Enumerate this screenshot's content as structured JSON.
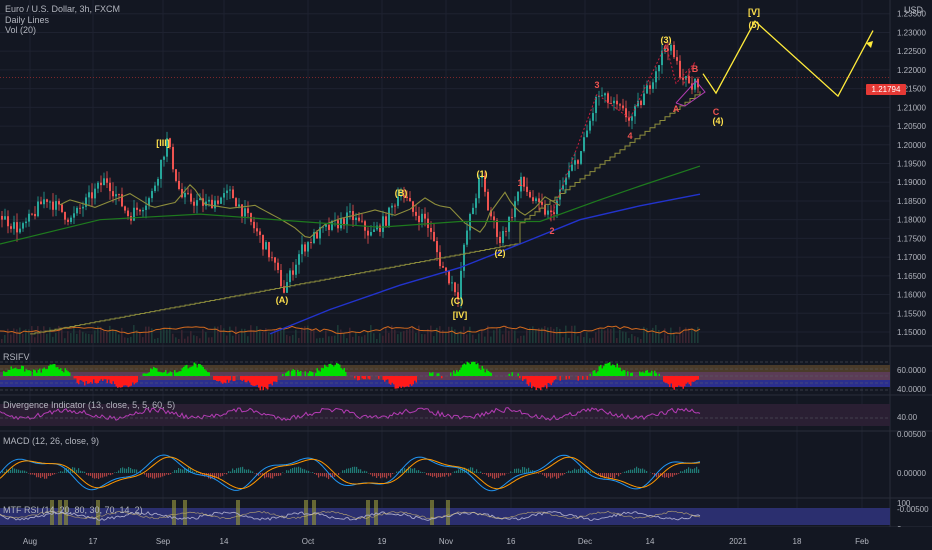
{
  "header": {
    "symbol_line": "Euro / U.S. Dollar, 3h, FXCM",
    "study_1": "Daily Lines",
    "study_2": "Vol (20)",
    "currency": "USD"
  },
  "last_price": "1.21794",
  "panes": {
    "rsi": "RSIFV",
    "divergence": "Divergence Indicator (13, close, 5, 5, 60, 5)",
    "macd": "MACD (12, 26, close, 9)",
    "mtf": "MTF RSI (14, 20, 80, 30, 70, 14, 2)"
  },
  "price_ticks": [
    "1.23500",
    "1.23000",
    "1.22500",
    "1.22000",
    "1.21500",
    "1.21000",
    "1.20500",
    "1.20000",
    "1.19500",
    "1.19000",
    "1.18500",
    "1.18000",
    "1.17500",
    "1.17000",
    "1.16500",
    "1.16000",
    "1.15500",
    "1.15000"
  ],
  "rsi_ticks": [
    "60.0000",
    "40.0000"
  ],
  "div_ticks": [
    "40.00"
  ],
  "macd_ticks": [
    "0.00500",
    "0.00000",
    "-0.00500"
  ],
  "mtf_ticks": [
    "100",
    "0"
  ],
  "x_ticks": [
    "Aug",
    "17",
    "Sep",
    "14",
    "Oct",
    "19",
    "Nov",
    "16",
    "Dec",
    "14",
    "2021",
    "18",
    "Feb"
  ],
  "wave_labels": {
    "III": "[III]",
    "IV": "[IV]",
    "V": "[V]",
    "A": "(A)",
    "B": "(B)",
    "C": "(C)",
    "w1": "(1)",
    "w2": "(2)",
    "w3": "(3)",
    "w4": "(4)",
    "w5": "(5)",
    "r1": "1",
    "r2": "2",
    "r3": "3",
    "r4": "4",
    "r5": "5",
    "ra": "A",
    "rb": "B",
    "rc": "C"
  },
  "colors": {
    "background": "#131722",
    "up_candle": "#26a69a",
    "down_candle": "#ef5350",
    "projection": "#ffeb3b",
    "wave_yellow": "#ffe14d",
    "wave_red": "#ef5350",
    "ma_olive": "#8d8d3c",
    "ma_green": "#1e7a1e",
    "ma_blue": "#2233cc",
    "rsi_green": "#00e000",
    "rsi_red": "#ff1a1a",
    "div_purple": "#b53cb5",
    "macd_blue": "#2196f3",
    "macd_orange": "#ff9800",
    "volume_orange": "#d2691e"
  },
  "chart_data": {
    "type": "candlestick",
    "symbol": "EUR/USD",
    "interval": "3h",
    "ylim": [
      1.148,
      1.238
    ],
    "last_price": 1.21794,
    "wave_points": [
      {
        "label": "[III]",
        "date": "2020-09-01",
        "price": 1.2011
      },
      {
        "label": "(A)",
        "date": "2020-09-25",
        "price": 1.1612
      },
      {
        "label": "(B)",
        "date": "2020-10-21",
        "price": 1.1881
      },
      {
        "label": "(C)",
        "date": "2020-11-04",
        "price": 1.1603
      },
      {
        "label": "(1)",
        "date": "2020-11-09",
        "price": 1.192
      },
      {
        "label": "(2)",
        "date": "2020-11-11",
        "price": 1.1746
      },
      {
        "label": "(3)",
        "date": "2020-12-17",
        "price": 1.2273
      },
      {
        "label": "(4)",
        "date": "2020-12-22",
        "price": 1.213
      },
      {
        "label": "[V] (5)",
        "date": "2021-01-06",
        "price": 1.233
      }
    ]
  }
}
